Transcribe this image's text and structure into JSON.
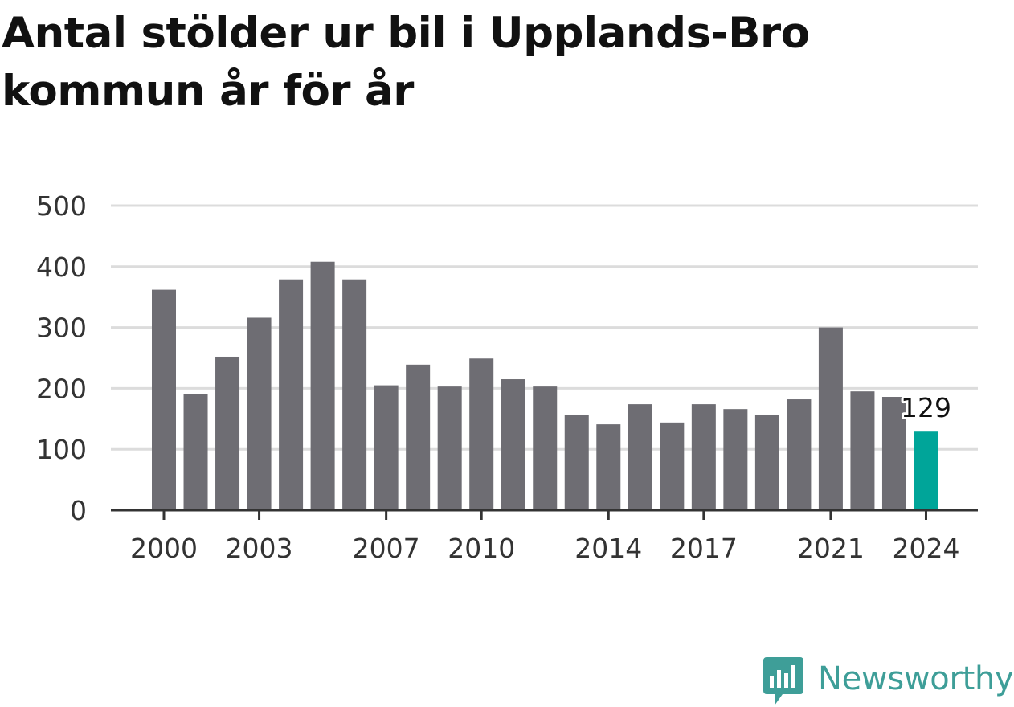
{
  "title": "Antal stölder ur bil i Upplands-Bro kommun år för år",
  "brand": {
    "name": "Newsworthy",
    "icon": "newsworthy-logo-icon",
    "color": "#3e9e98"
  },
  "chart_data": {
    "type": "bar",
    "categories": [
      "2000",
      "2001",
      "2002",
      "2003",
      "2004",
      "2005",
      "2006",
      "2007",
      "2008",
      "2009",
      "2010",
      "2011",
      "2012",
      "2013",
      "2014",
      "2015",
      "2016",
      "2017",
      "2018",
      "2019",
      "2020",
      "2021",
      "2022",
      "2023",
      "2024"
    ],
    "values": [
      362,
      191,
      252,
      316,
      379,
      408,
      379,
      205,
      239,
      203,
      249,
      215,
      203,
      157,
      141,
      174,
      144,
      174,
      166,
      157,
      182,
      300,
      195,
      186,
      129
    ],
    "x_tick_labels": [
      "2000",
      "2003",
      "2007",
      "2010",
      "2014",
      "2017",
      "2021",
      "2024"
    ],
    "y_ticks": [
      0,
      100,
      200,
      300,
      400,
      500
    ],
    "ylim": [
      0,
      500
    ],
    "grid": true,
    "colors": {
      "bar": "#6e6d73",
      "highlight": "#00a599",
      "grid": "#dcdcdc",
      "axis": "#333333"
    },
    "highlight": {
      "category": "2024",
      "label": "129"
    }
  }
}
